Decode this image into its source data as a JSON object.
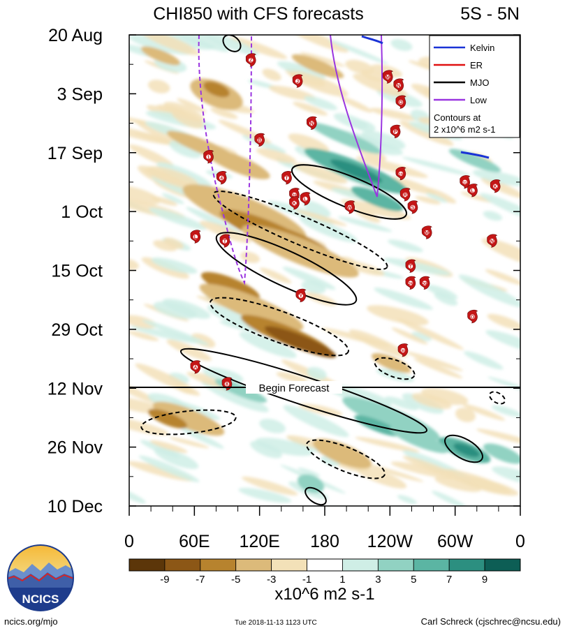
{
  "chart_data": {
    "type": "heatmap",
    "title": "CHI850 with CFS forecasts",
    "region": "5S - 5N",
    "x_axis": {
      "tick_labels": [
        "0",
        "60E",
        "120E",
        "180",
        "120W",
        "60W",
        "0"
      ],
      "range_deg_east": [
        0,
        360
      ]
    },
    "y_axis": {
      "tick_labels": [
        "20 Aug",
        "3 Sep",
        "17 Sep",
        "1 Oct",
        "15 Oct",
        "29 Oct",
        "12 Nov",
        "26 Nov",
        "10 Dec"
      ],
      "range": [
        "2018-08-20",
        "2018-12-10"
      ],
      "direction": "time increasing downward"
    },
    "forecast_marker": {
      "label": "Begin Forecast",
      "date": "2018-11-12"
    },
    "colorbar": {
      "tick_labels": [
        "-9",
        "-7",
        "-5",
        "-3",
        "-1",
        "1",
        "3",
        "5",
        "7",
        "9"
      ],
      "unit_label": "x10^6 m2 s-1",
      "colors": [
        "#5c3609",
        "#8c5716",
        "#b7832e",
        "#dcba7a",
        "#f3e1b8",
        "#ffffff",
        "#cfeee6",
        "#91d2c2",
        "#5bb5a3",
        "#2c8f80",
        "#0d5e55"
      ]
    },
    "legend": {
      "position": "top-right",
      "entries": [
        {
          "name": "Kelvin",
          "color": "#1a33d6"
        },
        {
          "name": "ER",
          "color": "#e01010"
        },
        {
          "name": "MJO",
          "color": "#000000"
        },
        {
          "name": "Low",
          "color": "#9a35e0"
        }
      ],
      "note_line1": "Contours at",
      "note_line2": "2 x10^6 m2 s-1"
    },
    "storms": [
      {
        "label": "Z",
        "lon": 112,
        "date": "2018-08-26"
      },
      {
        "label": "J",
        "lon": 155,
        "date": "2018-08-31"
      },
      {
        "label": "M",
        "lon": 238,
        "date": "2018-08-30"
      },
      {
        "label": "N",
        "lon": 248,
        "date": "2018-09-01"
      },
      {
        "label": "O",
        "lon": 250,
        "date": "2018-09-05"
      },
      {
        "label": "N",
        "lon": 168,
        "date": "2018-09-10"
      },
      {
        "label": "P",
        "lon": 245,
        "date": "2018-09-12"
      },
      {
        "label": "B",
        "lon": 120,
        "date": "2018-09-14"
      },
      {
        "label": "1",
        "lon": 73,
        "date": "2018-09-18"
      },
      {
        "label": "19",
        "lon": 250,
        "date": "2018-09-22"
      },
      {
        "label": "4",
        "lon": 85,
        "date": "2018-09-23"
      },
      {
        "label": "T",
        "lon": 145,
        "date": "2018-09-23"
      },
      {
        "label": "11",
        "lon": 309,
        "date": "2018-09-24"
      },
      {
        "label": "L",
        "lon": 316,
        "date": "2018-09-26"
      },
      {
        "label": "K",
        "lon": 337,
        "date": "2018-09-25"
      },
      {
        "label": "20",
        "lon": 152,
        "date": "2018-09-27"
      },
      {
        "label": "L",
        "lon": 162,
        "date": "2018-09-28"
      },
      {
        "label": "K",
        "lon": 152,
        "date": "2018-09-29"
      },
      {
        "label": "R",
        "lon": 254,
        "date": "2018-09-27"
      },
      {
        "label": "W",
        "lon": 203,
        "date": "2018-09-30"
      },
      {
        "label": "S",
        "lon": 261,
        "date": "2018-09-30"
      },
      {
        "label": "M",
        "lon": 274,
        "date": "2018-10-06"
      },
      {
        "label": "L",
        "lon": 61,
        "date": "2018-10-07"
      },
      {
        "label": "T",
        "lon": 88,
        "date": "2018-10-08"
      },
      {
        "label": "N",
        "lon": 334,
        "date": "2018-10-08"
      },
      {
        "label": "T",
        "lon": 259,
        "date": "2018-10-14"
      },
      {
        "label": "24",
        "lon": 259,
        "date": "2018-10-18"
      },
      {
        "label": "30",
        "lon": 272,
        "date": "2018-10-18"
      },
      {
        "label": "Y",
        "lon": 158,
        "date": "2018-10-21"
      },
      {
        "label": "O",
        "lon": 316,
        "date": "2018-10-26"
      },
      {
        "label": "30",
        "lon": 252,
        "date": "2018-11-03"
      },
      {
        "label": "A",
        "lon": 61,
        "date": "2018-11-07"
      },
      {
        "label": "8",
        "lon": 90,
        "date": "2018-11-11"
      }
    ]
  },
  "footer": {
    "website": "ncics.org/mjo",
    "timestamp": "Tue 2018-11-13 1123 UTC",
    "credit": "Carl Schreck (cjschrec@ncsu.edu)",
    "logo_text": "NCICS"
  }
}
